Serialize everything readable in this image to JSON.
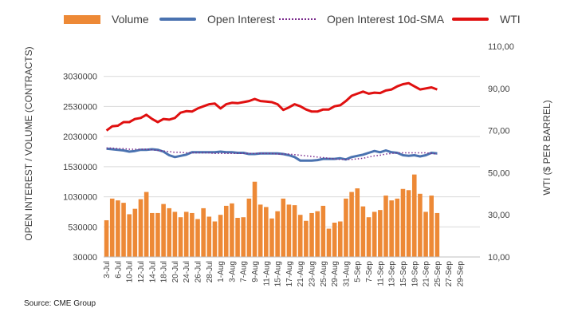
{
  "chart_data": {
    "type": "bar",
    "legend": {
      "volume": "Volume",
      "open_interest": "Open Interest",
      "sma": "Open Interest 10d-SMA",
      "wti": "WTI"
    },
    "ylabel_left": "OPEN INTEREST / VOLUME (CONTRACTS)",
    "ylabel_right": "WTI ($ PER BARREL)",
    "ylim_left": [
      30000,
      3530000
    ],
    "ylim_right": [
      10,
      110
    ],
    "yticks_left": [
      30000,
      530000,
      1030000,
      1530000,
      2030000,
      2530000,
      3030000
    ],
    "yticks_left_labels": [
      "30000",
      "530000",
      "1030000",
      "1530000",
      "2030000",
      "2530000",
      "3030000"
    ],
    "yticks_right": [
      10,
      30,
      50,
      70,
      90,
      110
    ],
    "yticks_right_labels": [
      "10,00",
      "30,00",
      "50,00",
      "70,00",
      "90,00",
      "110,00"
    ],
    "xtick_labels": [
      "3-Jul",
      "6-Jul",
      "10-Jul",
      "12-Jul",
      "14-Jul",
      "18-Jul",
      "20-Jul",
      "24-Jul",
      "26-Jul",
      "28-Jul",
      "1-Aug",
      "3-Aug",
      "7-Aug",
      "9-Aug",
      "11-Aug",
      "15-Aug",
      "17-Aug",
      "21-Aug",
      "23-Aug",
      "25-Aug",
      "29-Aug",
      "31-Aug",
      "5-Sep",
      "7-Sep",
      "11-Sep",
      "13-Sep",
      "15-Sep",
      "19-Sep",
      "21-Sep",
      "25-Sep",
      "27-Sep",
      "29-Sep"
    ],
    "volume": [
      640000,
      1000000,
      970000,
      930000,
      740000,
      830000,
      990000,
      1110000,
      760000,
      760000,
      910000,
      840000,
      780000,
      690000,
      780000,
      760000,
      660000,
      840000,
      700000,
      620000,
      730000,
      880000,
      920000,
      680000,
      690000,
      1000000,
      1280000,
      900000,
      860000,
      670000,
      790000,
      1000000,
      900000,
      890000,
      730000,
      630000,
      760000,
      790000,
      880000,
      500000,
      600000,
      620000,
      1000000,
      1110000,
      1170000,
      870000,
      690000,
      780000,
      810000,
      1050000,
      970000,
      1000000,
      1160000,
      1140000,
      1400000,
      1080000,
      780000,
      1050000,
      760000
    ],
    "open_interest": [
      1830000,
      1820000,
      1810000,
      1800000,
      1780000,
      1790000,
      1810000,
      1810000,
      1820000,
      1810000,
      1780000,
      1720000,
      1690000,
      1710000,
      1730000,
      1770000,
      1770000,
      1770000,
      1770000,
      1770000,
      1780000,
      1770000,
      1770000,
      1760000,
      1760000,
      1740000,
      1740000,
      1750000,
      1750000,
      1750000,
      1750000,
      1740000,
      1720000,
      1690000,
      1630000,
      1630000,
      1630000,
      1640000,
      1660000,
      1660000,
      1660000,
      1670000,
      1650000,
      1690000,
      1710000,
      1730000,
      1760000,
      1790000,
      1770000,
      1800000,
      1770000,
      1760000,
      1720000,
      1710000,
      1720000,
      1700000,
      1720000,
      1760000,
      1750000
    ],
    "sma": [
      1840000,
      1840000,
      1830000,
      1830000,
      1820000,
      1820000,
      1820000,
      1820000,
      1810000,
      1800000,
      1790000,
      1780000,
      1770000,
      1770000,
      1760000,
      1760000,
      1760000,
      1760000,
      1760000,
      1750000,
      1750000,
      1750000,
      1750000,
      1750000,
      1750000,
      1750000,
      1750000,
      1750000,
      1750000,
      1750000,
      1740000,
      1740000,
      1740000,
      1730000,
      1720000,
      1710000,
      1700000,
      1690000,
      1680000,
      1670000,
      1660000,
      1650000,
      1650000,
      1650000,
      1660000,
      1670000,
      1690000,
      1710000,
      1720000,
      1740000,
      1750000,
      1760000,
      1760000,
      1760000,
      1760000,
      1760000,
      1760000,
      1750000,
      1740000
    ],
    "wti": [
      70.0,
      72.0,
      72.3,
      74.0,
      74.0,
      75.5,
      76.0,
      77.5,
      75.5,
      74.0,
      75.5,
      75.2,
      76.0,
      78.5,
      79.2,
      79.0,
      80.5,
      81.5,
      82.5,
      82.8,
      80.5,
      82.5,
      83.2,
      83.0,
      83.5,
      84.0,
      85.0,
      84.0,
      83.8,
      83.5,
      82.5,
      79.8,
      81.0,
      82.5,
      81.5,
      80.0,
      79.0,
      79.0,
      80.0,
      80.0,
      81.5,
      82.0,
      84.0,
      86.5,
      87.5,
      88.5,
      87.5,
      88.0,
      87.8,
      89.0,
      89.5,
      91.0,
      92.0,
      92.5,
      91.0,
      89.5,
      90.0,
      90.5,
      89.5
    ],
    "source": "Source: CME Group"
  }
}
